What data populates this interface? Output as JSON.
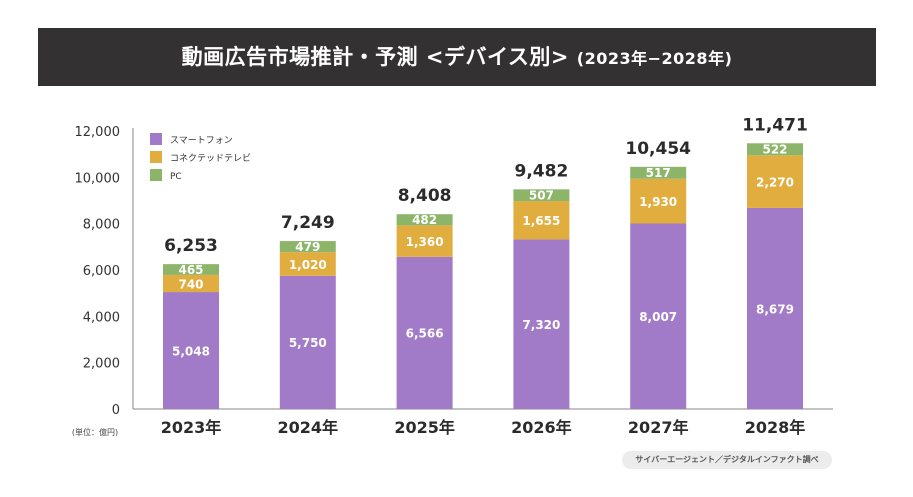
{
  "header": {
    "title": "動画広告市場推計・予測 <デバイス別>",
    "period": "(2023年−2028年)"
  },
  "unit_label": "(単位：億円)",
  "source": "サイバーエージェント／デジタルインファクト調べ",
  "chart_data": {
    "type": "bar",
    "stacked": true,
    "title": "動画広告市場推計・予測 <デバイス別> (2023年−2028年)",
    "xlabel": "",
    "ylabel": "(単位：億円)",
    "ylim": [
      0,
      12000
    ],
    "yticks": [
      0,
      2000,
      4000,
      6000,
      8000,
      10000,
      12000
    ],
    "ytick_labels": [
      "0",
      "2,000",
      "4,000",
      "6,000",
      "8,000",
      "10,000",
      "12,000"
    ],
    "grid": false,
    "legend_position": "top-left",
    "categories": [
      "2023年",
      "2024年",
      "2025年",
      "2026年",
      "2027年",
      "2028年"
    ],
    "series": [
      {
        "name": "スマートフォン",
        "color": "#a27bc8",
        "values": [
          5048,
          5750,
          6566,
          7320,
          8007,
          8679
        ],
        "labels": [
          "5,048",
          "5,750",
          "6,566",
          "7,320",
          "8,007",
          "8,679"
        ]
      },
      {
        "name": "コネクテッドテレビ",
        "color": "#e2ad3f",
        "values": [
          740,
          1020,
          1360,
          1655,
          1930,
          2270
        ],
        "labels": [
          "740",
          "1,020",
          "1,360",
          "1,655",
          "1,930",
          "2,270"
        ]
      },
      {
        "name": "PC",
        "color": "#8db56a",
        "values": [
          465,
          479,
          482,
          507,
          517,
          522
        ],
        "labels": [
          "465",
          "479",
          "482",
          "507",
          "517",
          "522"
        ]
      }
    ],
    "totals": [
      6253,
      7249,
      8408,
      9482,
      10454,
      11471
    ],
    "total_labels": [
      "6,253",
      "7,249",
      "8,408",
      "9,482",
      "10,454",
      "11,471"
    ]
  }
}
